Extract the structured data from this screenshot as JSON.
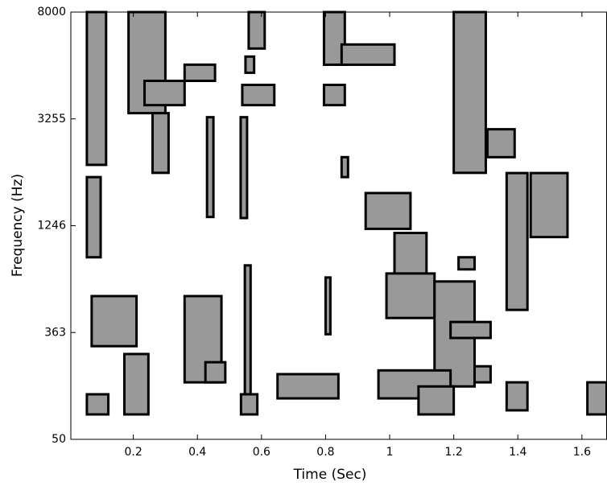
{
  "chart_data": {
    "type": "mask",
    "x_label": "Time (Sec)",
    "y_label": "Frequency (Hz)",
    "xlim": [
      0.005,
      1.677
    ],
    "xticks": [
      0.2,
      0.4,
      0.6,
      0.8,
      1,
      1.2,
      1.4,
      1.6
    ],
    "ylim": [
      50,
      8000
    ],
    "yticks": [
      50,
      363,
      1246,
      3255,
      8000
    ],
    "fill": "#999999",
    "edge": "#000000",
    "regions": [
      {
        "t": [
          0.055,
          0.115
        ],
        "f": [
          2390,
          8000
        ]
      },
      {
        "t": [
          0.055,
          0.098
        ],
        "f": [
          985,
          2160
        ]
      },
      {
        "t": [
          0.185,
          0.3
        ],
        "f": [
          3510,
          8000
        ]
      },
      {
        "t": [
          0.235,
          0.36
        ],
        "f": [
          3866,
          4944
        ]
      },
      {
        "t": [
          0.26,
          0.31
        ],
        "f": [
          2240,
          3510
        ]
      },
      {
        "t": [
          0.36,
          0.455
        ],
        "f": [
          4944,
          5663
        ]
      },
      {
        "t": [
          0.43,
          0.45
        ],
        "f": [
          1410,
          3330
        ]
      },
      {
        "t": [
          0.55,
          0.577
        ],
        "f": [
          5304,
          6023
        ]
      },
      {
        "t": [
          0.56,
          0.61
        ],
        "f": [
          6380,
          8000
        ]
      },
      {
        "t": [
          0.54,
          0.64
        ],
        "f": [
          3866,
          4765
        ]
      },
      {
        "t": [
          0.535,
          0.555
        ],
        "f": [
          1390,
          3330
        ]
      },
      {
        "t": [
          0.548,
          0.566
        ],
        "f": [
          135,
          918
        ]
      },
      {
        "t": [
          0.795,
          0.86
        ],
        "f": [
          5660,
          8000
        ]
      },
      {
        "t": [
          0.795,
          0.86
        ],
        "f": [
          3866,
          4765
        ]
      },
      {
        "t": [
          0.85,
          1.015
        ],
        "f": [
          5660,
          6560
        ]
      },
      {
        "t": [
          0.85,
          0.87
        ],
        "f": [
          2160,
          2535
        ]
      },
      {
        "t": [
          0.8,
          0.815
        ],
        "f": [
          358,
          818
        ]
      },
      {
        "t": [
          0.925,
          1.065
        ],
        "f": [
          1220,
          1860
        ]
      },
      {
        "t": [
          1.015,
          1.115
        ],
        "f": [
          718,
          1186
        ]
      },
      {
        "t": [
          0.99,
          1.14
        ],
        "f": [
          483,
          851
        ]
      },
      {
        "t": [
          1.2,
          1.3
        ],
        "f": [
          2240,
          8000
        ]
      },
      {
        "t": [
          1.305,
          1.39
        ],
        "f": [
          2535,
          3060
        ]
      },
      {
        "t": [
          1.14,
          1.265
        ],
        "f": [
          205,
          785
        ]
      },
      {
        "t": [
          1.19,
          1.315
        ],
        "f": [
          347,
          450
        ]
      },
      {
        "t": [
          1.265,
          1.315
        ],
        "f": [
          217,
          264
        ]
      },
      {
        "t": [
          0.965,
          1.19
        ],
        "f": [
          170,
          252
        ]
      },
      {
        "t": [
          1.09,
          1.2
        ],
        "f": [
          123,
          205
        ]
      },
      {
        "t": [
          0.65,
          0.84
        ],
        "f": [
          170,
          241
        ]
      },
      {
        "t": [
          0.055,
          0.122
        ],
        "f": [
          123,
          182
        ]
      },
      {
        "t": [
          0.172,
          0.247
        ],
        "f": [
          123,
          300
        ]
      },
      {
        "t": [
          0.07,
          0.21
        ],
        "f": [
          323,
          664
        ]
      },
      {
        "t": [
          0.36,
          0.475
        ],
        "f": [
          217,
          664
        ]
      },
      {
        "t": [
          0.425,
          0.487
        ],
        "f": [
          217,
          276
        ]
      },
      {
        "t": [
          1.365,
          1.43
        ],
        "f": [
          550,
          2236
        ]
      },
      {
        "t": [
          1.44,
          1.555
        ],
        "f": [
          1152,
          2236
        ]
      },
      {
        "t": [
          1.617,
          1.677
        ],
        "f": [
          123,
          217
        ]
      },
      {
        "t": [
          1.365,
          1.43
        ],
        "f": [
          135,
          217
        ]
      },
      {
        "t": [
          0.536,
          0.587
        ],
        "f": [
          123,
          182
        ]
      },
      {
        "t": [
          1.215,
          1.265
        ],
        "f": [
          885,
          985
        ]
      }
    ]
  }
}
